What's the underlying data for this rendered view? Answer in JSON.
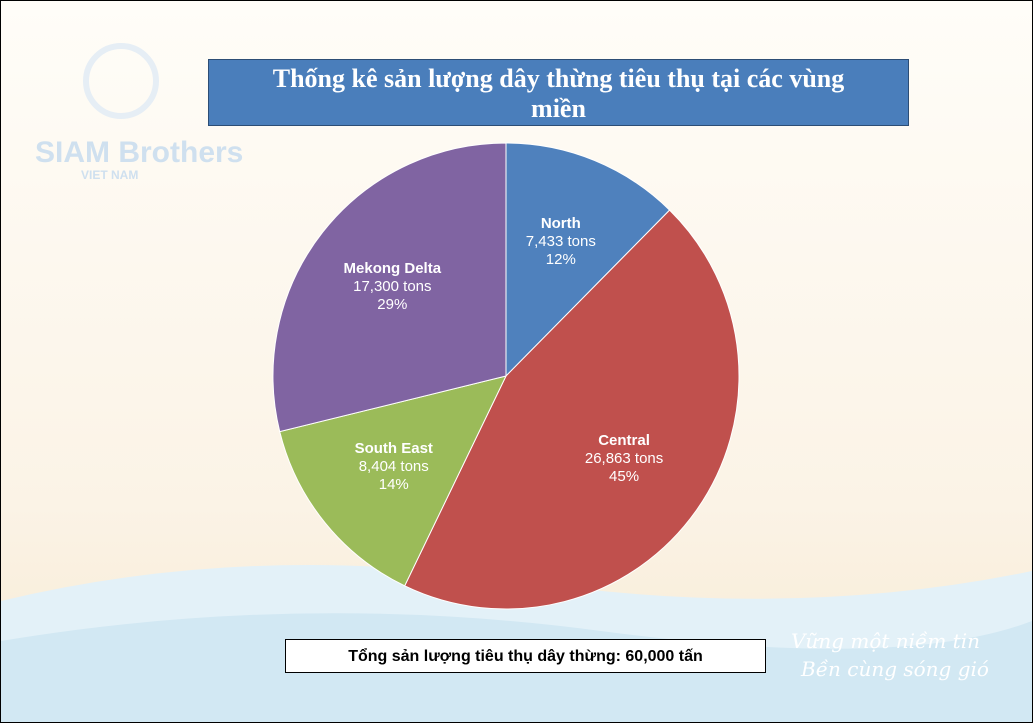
{
  "chart_data": {
    "type": "pie",
    "title": "Thống kê sản lượng dây thừng tiêu thụ tại các vùng miền",
    "categories": [
      "North",
      "Central",
      "South East",
      "Mekong Delta"
    ],
    "values": [
      7433,
      26863,
      8404,
      17300
    ],
    "value_labels": [
      "7,433 tons",
      "26,863 tons",
      "8,404 tons",
      "17,300 tons"
    ],
    "percentages": [
      12,
      45,
      14,
      29
    ],
    "percentage_labels": [
      "12%",
      "45%",
      "14%",
      "29%"
    ],
    "colors": [
      "#4f81bd",
      "#c0504d",
      "#9bbb59",
      "#8064a2"
    ],
    "note": "Tổng sản lượng tiêu thụ dây thừng: 60,000 tấn"
  },
  "logo": {
    "brand": "SIAM Brothers",
    "sub": "VIET NAM"
  },
  "slogan": [
    "Vững một niềm tin",
    "Bền cùng sóng gió"
  ]
}
